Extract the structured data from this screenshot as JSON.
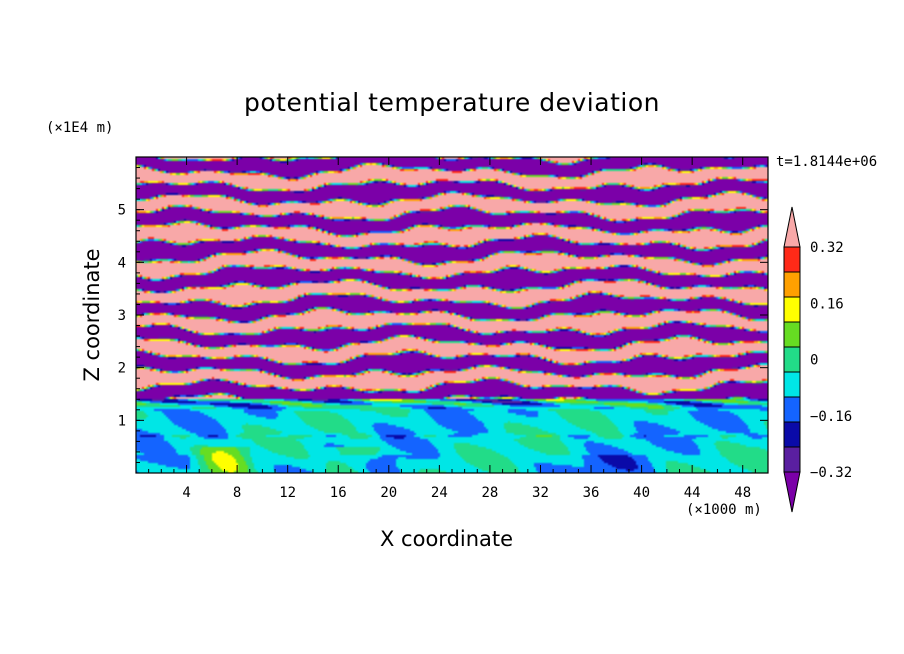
{
  "chart_data": {
    "type": "heatmap",
    "title": "potential temperature deviation",
    "xlabel": "X coordinate",
    "ylabel": "Z coordinate",
    "x_unit": "(×1000 m)",
    "y_unit": "(×1E4 m)",
    "time_label": "t=1.8144e+06",
    "xlim": [
      0,
      50
    ],
    "ylim": [
      0,
      6
    ],
    "x_ticks": [
      4,
      8,
      12,
      16,
      20,
      24,
      28,
      32,
      36,
      40,
      44,
      48
    ],
    "y_ticks": [
      1,
      2,
      3,
      4,
      5
    ],
    "colorbar": {
      "levels": [
        -0.4,
        -0.32,
        -0.24,
        -0.16,
        -0.08,
        0,
        0.08,
        0.16,
        0.24,
        0.32,
        0.4
      ],
      "tick_labels": [
        "0.32",
        "0.16",
        "0",
        "−0.16",
        "−0.32"
      ],
      "tick_values": [
        0.32,
        0.16,
        0,
        -0.16,
        -0.32
      ],
      "extend": "both",
      "colors": [
        "#7b00a8",
        "#5a1fa0",
        "#0a0aa8",
        "#1464ff",
        "#00e6e6",
        "#22dc88",
        "#66dd22",
        "#ffff00",
        "#ffa000",
        "#ff2a18",
        "#f8a8a8"
      ]
    },
    "field_description_bands": [
      {
        "z_range": [
          0,
          1.4
        ],
        "dominant_value": -0.04,
        "note": "near-zero greens/cyans with warm patches"
      },
      {
        "z_range": [
          1.4,
          6
        ],
        "alternating_values": [
          0.4,
          -0.4
        ],
        "note": "layered positive/negative bands"
      }
    ]
  }
}
